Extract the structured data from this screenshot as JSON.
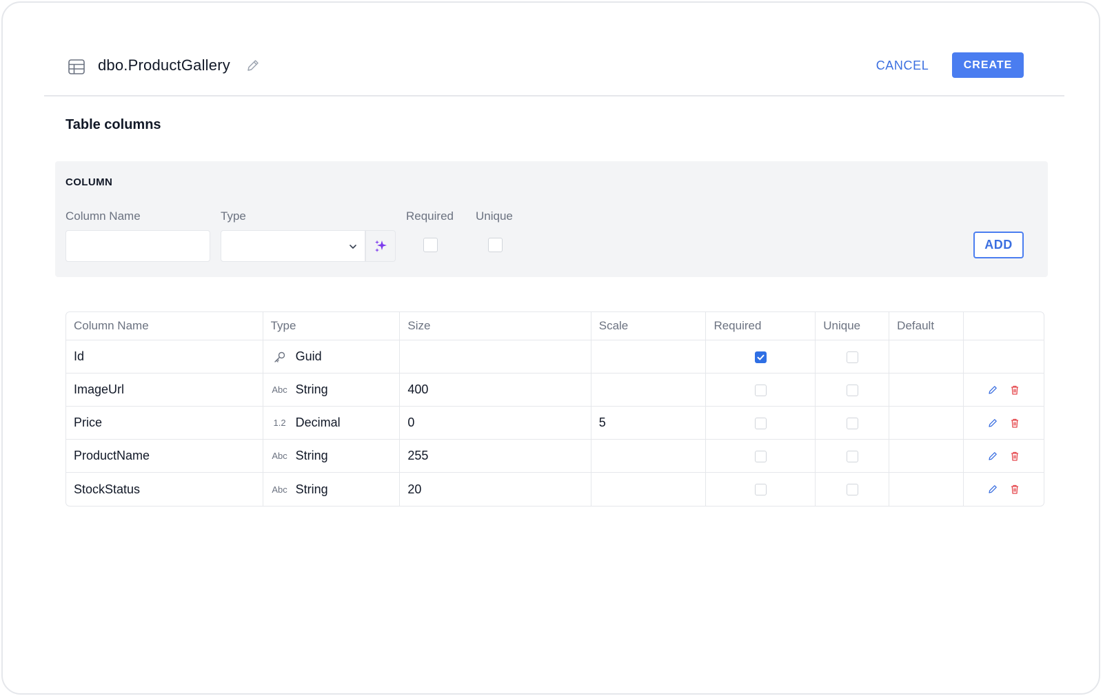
{
  "header": {
    "title": "dbo.ProductGallery",
    "cancel_label": "CANCEL",
    "create_label": "CREATE"
  },
  "section_title": "Table columns",
  "column_form": {
    "heading": "COLUMN",
    "name_label": "Column Name",
    "name_value": "",
    "type_label": "Type",
    "type_value": "",
    "required_label": "Required",
    "unique_label": "Unique",
    "add_label": "ADD"
  },
  "table": {
    "headers": [
      "Column Name",
      "Type",
      "Size",
      "Scale",
      "Required",
      "Unique",
      "Default",
      ""
    ],
    "rows": [
      {
        "name": "Id",
        "type_icon": "key-icon",
        "type": "Guid",
        "size": "",
        "scale": "",
        "required": true,
        "unique": false,
        "default": "",
        "editable": false
      },
      {
        "name": "ImageUrl",
        "type_icon": "abc-icon",
        "type": "String",
        "size": "400",
        "scale": "",
        "required": false,
        "unique": false,
        "default": "",
        "editable": true
      },
      {
        "name": "Price",
        "type_icon": "decimal-icon",
        "type": "Decimal",
        "size": "0",
        "scale": "5",
        "required": false,
        "unique": false,
        "default": "",
        "editable": true
      },
      {
        "name": "ProductName",
        "type_icon": "abc-icon",
        "type": "String",
        "size": "255",
        "scale": "",
        "required": false,
        "unique": false,
        "default": "",
        "editable": true
      },
      {
        "name": "StockStatus",
        "type_icon": "abc-icon",
        "type": "String",
        "size": "20",
        "scale": "",
        "required": false,
        "unique": false,
        "default": "",
        "editable": true
      }
    ]
  },
  "icon_text": {
    "abc": "Abc",
    "decimal": "1.2"
  },
  "colors": {
    "accent": "#4a7df0",
    "delete": "#e5484d",
    "magic": "#7c3aed"
  }
}
